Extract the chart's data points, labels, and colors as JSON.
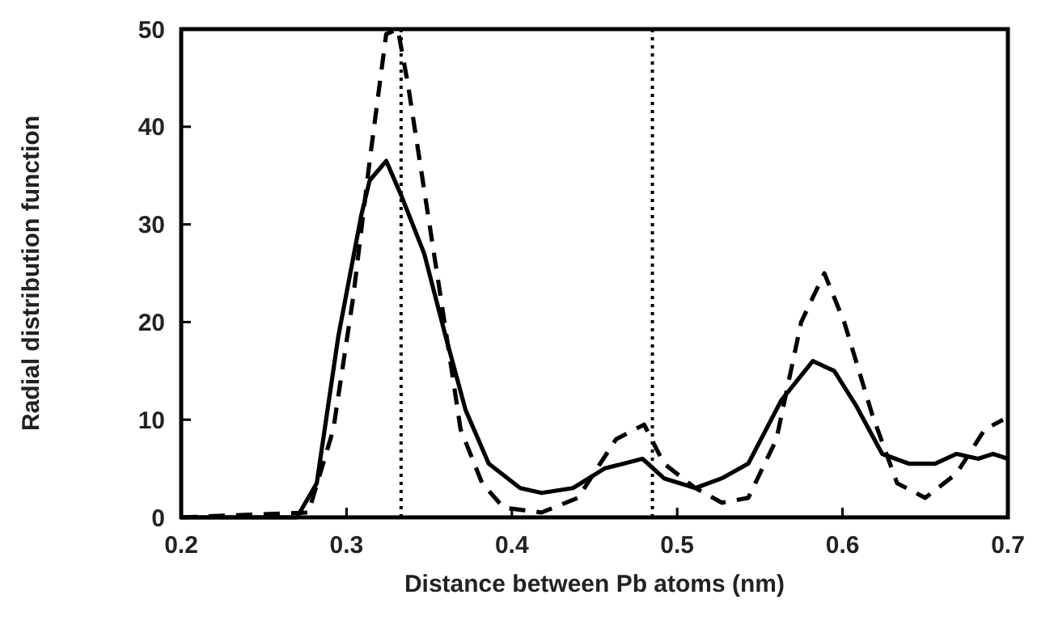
{
  "chart_data": {
    "type": "line",
    "xlabel": "Distance between Pb atoms (nm)",
    "ylabel": "Radial distribution function",
    "xlim": [
      0.2,
      0.7
    ],
    "ylim": [
      0,
      50
    ],
    "xticks": [
      0.2,
      0.3,
      0.4,
      0.5,
      0.6,
      0.7
    ],
    "yticks": [
      0,
      10,
      20,
      30,
      40,
      50
    ],
    "grid": false,
    "series": [
      {
        "color": "#000000",
        "line_style": "solid",
        "x": [
          0.2,
          0.27,
          0.282,
          0.295,
          0.309,
          0.314,
          0.324,
          0.333,
          0.347,
          0.36,
          0.372,
          0.386,
          0.405,
          0.418,
          0.437,
          0.456,
          0.479,
          0.492,
          0.511,
          0.527,
          0.543,
          0.563,
          0.582,
          0.595,
          0.608,
          0.624,
          0.64,
          0.656,
          0.669,
          0.682,
          0.691,
          0.7
        ],
        "values": [
          0,
          0,
          3.5,
          18.5,
          31,
          34.5,
          36.5,
          33,
          27,
          18.5,
          11,
          5.5,
          3,
          2.5,
          3,
          5,
          6,
          4,
          3,
          4,
          5.5,
          12,
          16,
          15,
          11.5,
          6.5,
          5.5,
          5.5,
          6.5,
          6,
          6.5,
          6
        ]
      },
      {
        "color": "#000000",
        "line_style": "dashed",
        "x": [
          0.2,
          0.277,
          0.292,
          0.304,
          0.314,
          0.324,
          0.331,
          0.337,
          0.347,
          0.357,
          0.369,
          0.382,
          0.395,
          0.418,
          0.44,
          0.463,
          0.48,
          0.492,
          0.511,
          0.527,
          0.543,
          0.56,
          0.575,
          0.589,
          0.601,
          0.618,
          0.633,
          0.65,
          0.669,
          0.686,
          0.697
        ],
        "values": [
          0,
          0.5,
          9,
          22.5,
          36.5,
          49.5,
          50,
          44.5,
          33.5,
          22.5,
          9,
          3.5,
          1,
          0.5,
          2,
          8,
          9.5,
          5.5,
          3,
          1.5,
          2,
          8,
          20,
          25,
          20,
          10.5,
          3.5,
          2,
          4.5,
          9,
          10
        ]
      }
    ],
    "ref_lines": [
      {
        "axis": "x",
        "value": 0.333,
        "line_style": "dotted"
      },
      {
        "axis": "x",
        "value": 0.485,
        "line_style": "dotted"
      }
    ]
  }
}
